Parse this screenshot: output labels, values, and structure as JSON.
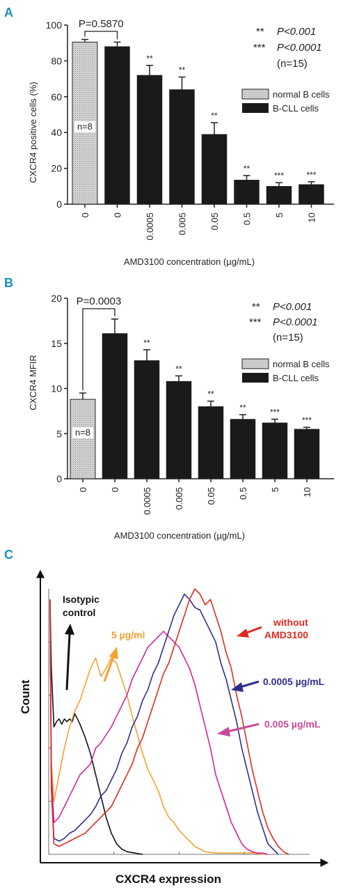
{
  "colors": {
    "panel_letter": "#1b8fb8",
    "bar_dark": "#1a1a1a",
    "bar_light": "#c8c8c8",
    "isotype": "#111111",
    "c5": "#f5a030",
    "c0005": "#d6249a",
    "c00005": "#2e2e8c",
    "without": "#e02a1e"
  },
  "panels": {
    "a": {
      "letter": "A",
      "ylabel": "CXCR4 positive cells (%)",
      "xlabel": "AMD3100 concentration (µg/mL)",
      "stats": {
        "line1_stars": "**",
        "line1_text": "P<0.001",
        "line2_stars": "***",
        "line2_text": "P<0.0001",
        "line3": "(n=15)"
      },
      "pvalue": "P=0.5870",
      "n_label": "n=8",
      "legend": {
        "normal": "normal B cells",
        "cll": "B-CLL cells"
      }
    },
    "b": {
      "letter": "B",
      "ylabel": "CXCR4 MFIR",
      "xlabel": "AMD3100 concentration (µg/mL)",
      "stats": {
        "line1_stars": "**",
        "line1_text": "P<0.001",
        "line2_stars": "***",
        "line2_text": "P<0.0001",
        "line3": "(n=15)"
      },
      "pvalue": "P=0.0003",
      "n_label": "n=8",
      "legend": {
        "normal": "normal B cells",
        "cll": "B-CLL cells"
      }
    },
    "c": {
      "letter": "C",
      "ylabel": "Count",
      "xlabel": "CXCR4 expression",
      "annotations": {
        "isotype_line1": "Isotypic",
        "isotype_line2": "control",
        "c5": "5 µg/ml",
        "without_line1": "without",
        "without_line2": "AMD3100",
        "c00005": "0.0005 µg/mL",
        "c0005": "0.005 µg/mL"
      }
    }
  },
  "chart_data": [
    {
      "type": "bar",
      "title": "",
      "xlabel": "AMD3100 concentration (µg/mL)",
      "ylabel": "CXCR4 positive cells (%)",
      "ylim": [
        0,
        100
      ],
      "yticks": [
        0,
        20,
        40,
        60,
        80,
        100
      ],
      "categories": [
        "0",
        "0",
        "0.0005",
        "0.005",
        "0.05",
        "0.5",
        "5",
        "10"
      ],
      "groups": [
        "normal B cells",
        "B-CLL cells",
        "B-CLL cells",
        "B-CLL cells",
        "B-CLL cells",
        "B-CLL cells",
        "B-CLL cells",
        "B-CLL cells"
      ],
      "values": [
        90.5,
        88,
        72,
        64,
        39,
        13.5,
        10,
        11
      ],
      "errors": [
        1.5,
        2.5,
        5.5,
        7,
        6.5,
        2.5,
        2,
        1.5
      ],
      "significance": [
        "",
        "",
        "**",
        "**",
        "**",
        "**",
        "***",
        "***"
      ],
      "comparison": {
        "bars": [
          0,
          1
        ],
        "label": "P=0.5870"
      },
      "legend": [
        "normal B cells",
        "B-CLL cells"
      ]
    },
    {
      "type": "bar",
      "title": "",
      "xlabel": "AMD3100 concentration (µg/mL)",
      "ylabel": "CXCR4 MFIR",
      "ylim": [
        0,
        20
      ],
      "yticks": [
        0,
        5,
        10,
        15,
        20
      ],
      "categories": [
        "0",
        "0",
        "0.0005",
        "0.005",
        "0.05",
        "0.5",
        "5",
        "10"
      ],
      "groups": [
        "normal B cells",
        "B-CLL cells",
        "B-CLL cells",
        "B-CLL cells",
        "B-CLL cells",
        "B-CLL cells",
        "B-CLL cells",
        "B-CLL cells"
      ],
      "values": [
        8.8,
        16.1,
        13.1,
        10.8,
        8.0,
        6.6,
        6.2,
        5.5
      ],
      "errors": [
        0.7,
        1.6,
        1.2,
        0.6,
        0.6,
        0.5,
        0.4,
        0.2
      ],
      "significance": [
        "",
        "",
        "**",
        "**",
        "**",
        "**",
        "***",
        "***"
      ],
      "comparison": {
        "bars": [
          0,
          1
        ],
        "label": "P=0.0003"
      },
      "legend": [
        "normal B cells",
        "B-CLL cells"
      ]
    },
    {
      "type": "line",
      "title": "",
      "xlabel": "CXCR4 expression",
      "ylabel": "Count",
      "x_scale": "relative 0-100",
      "y_scale": "relative 0-100",
      "series": [
        {
          "name": "Isotypic control",
          "color": "#111111",
          "x": [
            0.5,
            1,
            2,
            3,
            4,
            5,
            6,
            7,
            8,
            9,
            10,
            11,
            12,
            14,
            16,
            18,
            20,
            22,
            24,
            26,
            28,
            30,
            33,
            36
          ],
          "y": [
            95,
            70,
            48,
            50,
            51,
            49,
            51,
            50,
            51,
            50,
            53,
            51,
            49,
            44,
            38,
            30,
            22,
            14,
            8,
            4,
            2,
            1,
            0.5,
            0
          ]
        },
        {
          "name": "5 µg/ml",
          "color": "#f5a030",
          "x": [
            0.5,
            1,
            2,
            4,
            6,
            8,
            10,
            12,
            14,
            16,
            18,
            20,
            22,
            24,
            26,
            28,
            30,
            32,
            34,
            36,
            38,
            40,
            42,
            44,
            46,
            48,
            50,
            52,
            54,
            56,
            58,
            60,
            64,
            68,
            72,
            78,
            84
          ],
          "y": [
            96,
            35,
            20,
            30,
            40,
            48,
            54,
            58,
            64,
            70,
            74,
            67,
            70,
            74,
            72,
            66,
            60,
            52,
            45,
            38,
            32,
            28,
            24,
            18,
            14,
            12,
            9,
            7,
            5,
            3,
            2,
            1,
            0.5,
            0.5,
            0.5,
            0.5,
            0
          ]
        },
        {
          "name": "0.005 µg/mL",
          "color": "#d6249a",
          "x": [
            0.5,
            1,
            2,
            4,
            6,
            8,
            10,
            12,
            14,
            16,
            18,
            20,
            22,
            24,
            26,
            28,
            30,
            32,
            34,
            36,
            38,
            40,
            42,
            44,
            46,
            48,
            50,
            52,
            54,
            56,
            58,
            60,
            62,
            64,
            66,
            68,
            70,
            72,
            74,
            76,
            78,
            80,
            82,
            84
          ],
          "y": [
            96,
            30,
            12,
            14,
            18,
            22,
            26,
            30,
            32,
            34,
            40,
            42,
            45,
            48,
            52,
            56,
            60,
            66,
            70,
            74,
            78,
            80,
            82,
            84,
            82,
            80,
            78,
            74,
            70,
            64,
            56,
            48,
            40,
            30,
            24,
            18,
            12,
            8,
            4,
            2,
            1,
            0.5,
            0.5,
            0
          ]
        },
        {
          "name": "0.0005 µg/mL",
          "color": "#2e2e8c",
          "x": [
            0.5,
            1,
            2,
            4,
            6,
            8,
            10,
            12,
            14,
            16,
            18,
            20,
            22,
            24,
            26,
            28,
            30,
            32,
            34,
            36,
            38,
            40,
            42,
            44,
            46,
            48,
            50,
            52,
            54,
            56,
            58,
            60,
            62,
            64,
            66,
            68,
            70,
            72,
            74,
            76,
            78,
            80,
            82,
            84,
            86,
            88
          ],
          "y": [
            96,
            25,
            6,
            5,
            6,
            8,
            9,
            11,
            13,
            15,
            18,
            22,
            24,
            28,
            32,
            38,
            42,
            48,
            52,
            58,
            62,
            68,
            72,
            78,
            84,
            90,
            94,
            98,
            96,
            93,
            92,
            88,
            84,
            80,
            72,
            66,
            58,
            50,
            40,
            32,
            24,
            16,
            10,
            4,
            2,
            0
          ]
        },
        {
          "name": "without AMD3100",
          "color": "#e02a1e",
          "x": [
            0.5,
            1,
            2,
            4,
            6,
            8,
            10,
            12,
            14,
            16,
            18,
            20,
            22,
            24,
            26,
            28,
            30,
            32,
            34,
            36,
            38,
            40,
            42,
            44,
            46,
            48,
            50,
            52,
            54,
            56,
            58,
            60,
            62,
            64,
            66,
            68,
            70,
            72,
            74,
            76,
            78,
            80,
            82,
            84,
            86,
            88,
            90,
            92
          ],
          "y": [
            96,
            25,
            4,
            3,
            4,
            5,
            6,
            7,
            8,
            10,
            12,
            14,
            16,
            18,
            22,
            26,
            30,
            34,
            40,
            44,
            50,
            56,
            62,
            68,
            72,
            78,
            84,
            90,
            96,
            100,
            98,
            94,
            96,
            90,
            84,
            76,
            70,
            60,
            52,
            42,
            32,
            24,
            16,
            10,
            6,
            3,
            1,
            0
          ]
        }
      ],
      "annotations": [
        "Isotypic control",
        "5 µg/ml",
        "without AMD3100",
        "0.0005 µg/mL",
        "0.005 µg/mL"
      ]
    }
  ]
}
